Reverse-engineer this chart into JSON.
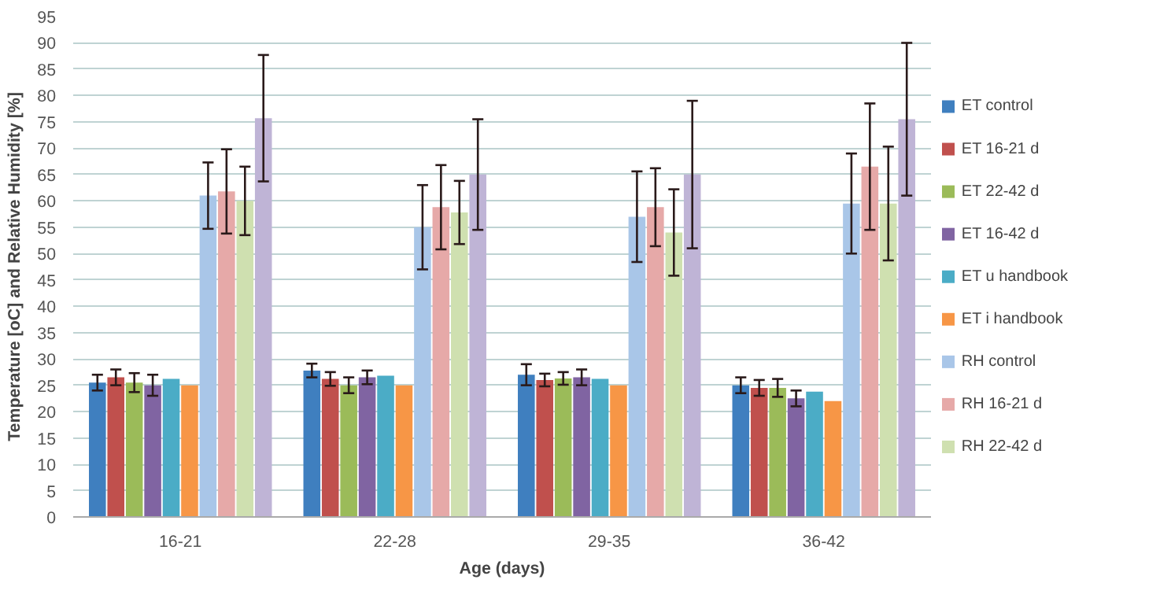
{
  "chart_data": {
    "type": "bar",
    "xlabel": "Age (days)",
    "ylabel": "Temperature [oC] and Relative Humidity [%]",
    "categories": [
      "16-21",
      "22-28",
      "29-35",
      "36-42"
    ],
    "ylim": [
      0,
      95
    ],
    "yticks": [
      0,
      5,
      10,
      15,
      20,
      25,
      30,
      35,
      40,
      45,
      50,
      55,
      60,
      65,
      70,
      75,
      80,
      85,
      90,
      95
    ],
    "grid": "y",
    "legend": "right",
    "series": [
      {
        "name": "ET control",
        "color": "#3f7fbf",
        "values": [
          25.5,
          27.8,
          27,
          25
        ],
        "errors": [
          1.5,
          1.3,
          2,
          1.5
        ]
      },
      {
        "name": "ET 16-21 d",
        "color": "#c0504d",
        "values": [
          26.5,
          26.2,
          26,
          24.5
        ],
        "errors": [
          1.5,
          1.3,
          1.2,
          1.5
        ]
      },
      {
        "name": "ET 22-42 d",
        "color": "#9bbb59",
        "values": [
          25.5,
          25,
          26.3,
          24.5
        ],
        "errors": [
          1.8,
          1.5,
          1.2,
          1.7
        ]
      },
      {
        "name": "ET 16-42 d",
        "color": "#8064a2",
        "values": [
          25,
          26.5,
          26.5,
          22.5
        ],
        "errors": [
          2,
          1.3,
          1.5,
          1.5
        ]
      },
      {
        "name": "ET u handbook",
        "color": "#4bacc6",
        "values": [
          26.2,
          26.8,
          26.2,
          23.8
        ]
      },
      {
        "name": "ET i handbook",
        "color": "#f79646",
        "values": [
          25,
          25,
          25,
          22
        ]
      },
      {
        "name": "RH control",
        "color": "#a9c6e8",
        "values": [
          61,
          55,
          57,
          59.5
        ],
        "errors": [
          6.3,
          8,
          8.6,
          9.5
        ]
      },
      {
        "name": "RH 16-21 d",
        "color": "#e6a9a8",
        "values": [
          61.8,
          58.8,
          58.8,
          66.5
        ],
        "errors": [
          8,
          8,
          7.4,
          12
        ]
      },
      {
        "name": "RH 22-42 d",
        "color": "#cfe0b0",
        "values": [
          60,
          57.8,
          54,
          59.5
        ],
        "errors": [
          6.5,
          6,
          8.2,
          10.8
        ]
      },
      {
        "color": "#bfb4d6",
        "values": [
          75.7,
          65,
          65,
          75.5
        ],
        "errors": [
          12,
          10.5,
          14,
          14.5
        ]
      }
    ]
  }
}
